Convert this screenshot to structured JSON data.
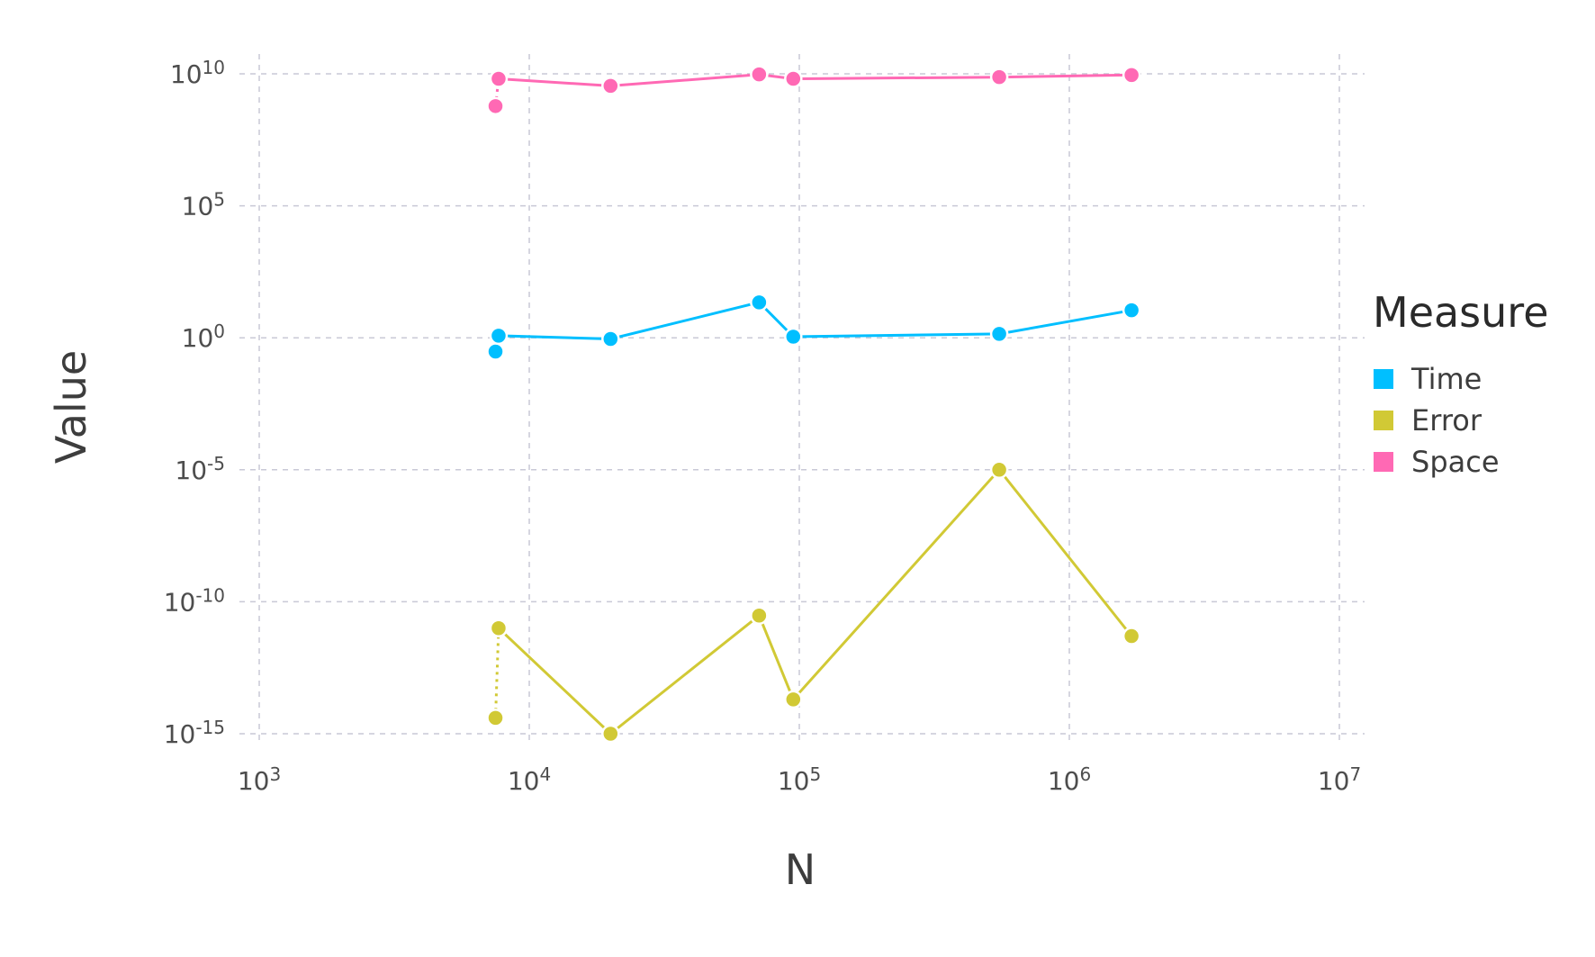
{
  "chart_data": {
    "type": "line",
    "xlabel": "N",
    "ylabel": "Value",
    "x_scale": "log",
    "y_scale": "log",
    "xlim": [
      1000,
      10000000
    ],
    "ylim": [
      1e-15,
      10000000000.0
    ],
    "x_ticks": [
      {
        "value": 1000,
        "base": "10",
        "exp": "3"
      },
      {
        "value": 10000,
        "base": "10",
        "exp": "4"
      },
      {
        "value": 100000,
        "base": "10",
        "exp": "5"
      },
      {
        "value": 1000000,
        "base": "10",
        "exp": "6"
      },
      {
        "value": 10000000,
        "base": "10",
        "exp": "7"
      }
    ],
    "y_ticks": [
      {
        "value": 10000000000.0,
        "base": "10",
        "exp": "10"
      },
      {
        "value": 100000.0,
        "base": "10",
        "exp": "5"
      },
      {
        "value": 1,
        "base": "10",
        "exp": "0"
      },
      {
        "value": 1e-05,
        "base": "10",
        "exp": "-5"
      },
      {
        "value": 1e-10,
        "base": "10",
        "exp": "-10"
      },
      {
        "value": 1e-15,
        "base": "10",
        "exp": "-15"
      }
    ],
    "grid": true,
    "legend": {
      "title": "Measure",
      "position": "right"
    },
    "series": [
      {
        "name": "Time",
        "color": "#00bfff",
        "x": [
          7500,
          7700,
          20000,
          71000,
          95000,
          550000,
          1700000
        ],
        "y": [
          0.3,
          1.2,
          0.9,
          22,
          1.1,
          1.4,
          11
        ]
      },
      {
        "name": "Error",
        "color": "#d1c935",
        "x": [
          7500,
          7700,
          20000,
          71000,
          95000,
          550000,
          1700000
        ],
        "y": [
          4e-15,
          1e-11,
          1e-15,
          3e-11,
          2e-14,
          1e-05,
          5e-12
        ]
      },
      {
        "name": "Space",
        "color": "#ff69b4",
        "x": [
          7500,
          7700,
          20000,
          71000,
          95000,
          550000,
          1700000
        ],
        "y": [
          600000000,
          6500000000,
          3500000000,
          9500000000,
          6500000000,
          7500000000,
          9000000000
        ]
      }
    ]
  }
}
